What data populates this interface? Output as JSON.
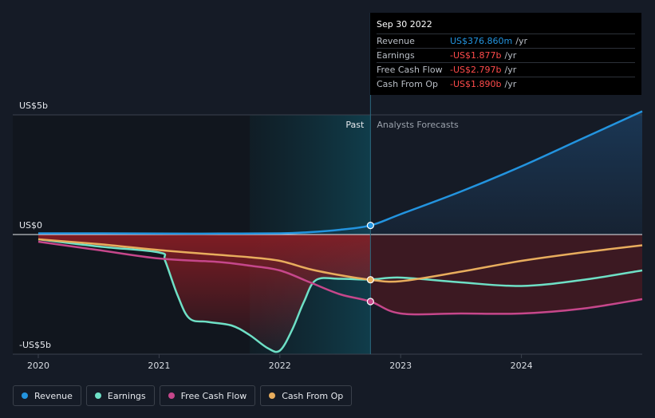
{
  "chart_data": {
    "type": "line",
    "title": "",
    "x_range": [
      2020.0,
      2025.0
    ],
    "y_range": [
      -5,
      5
    ],
    "y_tick_labels": [
      "US$5b",
      "US$0",
      "-US$5b"
    ],
    "y_tick_values": [
      5,
      0,
      -5
    ],
    "x_tick_labels": [
      "2020",
      "2021",
      "2022",
      "2023",
      "2024"
    ],
    "x_tick_values": [
      2020,
      2021,
      2022,
      2023,
      2024
    ],
    "past_label": "Past",
    "forecast_label": "Analysts Forecasts",
    "divider_x": 2022.75,
    "highlight_start_x": 2021.75,
    "series": [
      {
        "name": "Revenue",
        "color": "#2394df",
        "points": [
          [
            2020.0,
            0.05
          ],
          [
            2020.5,
            0.05
          ],
          [
            2021.0,
            0.04
          ],
          [
            2021.5,
            0.04
          ],
          [
            2022.0,
            0.05
          ],
          [
            2022.25,
            0.1
          ],
          [
            2022.5,
            0.2
          ],
          [
            2022.75,
            0.38
          ],
          [
            2023.0,
            0.85
          ],
          [
            2023.5,
            1.8
          ],
          [
            2024.0,
            2.85
          ],
          [
            2024.5,
            4.0
          ],
          [
            2025.0,
            5.15
          ]
        ]
      },
      {
        "name": "Earnings",
        "color": "#6ee0c6",
        "points": [
          [
            2020.0,
            -0.2
          ],
          [
            2020.5,
            -0.5
          ],
          [
            2021.0,
            -0.75
          ],
          [
            2021.05,
            -1.1
          ],
          [
            2021.15,
            -2.5
          ],
          [
            2021.25,
            -3.5
          ],
          [
            2021.4,
            -3.65
          ],
          [
            2021.6,
            -3.8
          ],
          [
            2021.75,
            -4.2
          ],
          [
            2021.9,
            -4.75
          ],
          [
            2022.0,
            -4.85
          ],
          [
            2022.1,
            -4.0
          ],
          [
            2022.2,
            -2.8
          ],
          [
            2022.3,
            -1.9
          ],
          [
            2022.5,
            -1.85
          ],
          [
            2022.75,
            -1.88
          ],
          [
            2023.0,
            -1.8
          ],
          [
            2023.5,
            -2.0
          ],
          [
            2024.0,
            -2.15
          ],
          [
            2024.5,
            -1.9
          ],
          [
            2025.0,
            -1.5
          ]
        ]
      },
      {
        "name": "Free Cash Flow",
        "color": "#c6478b",
        "points": [
          [
            2020.0,
            -0.3
          ],
          [
            2020.5,
            -0.65
          ],
          [
            2021.0,
            -1.0
          ],
          [
            2021.5,
            -1.15
          ],
          [
            2021.75,
            -1.3
          ],
          [
            2022.0,
            -1.5
          ],
          [
            2022.25,
            -2.0
          ],
          [
            2022.5,
            -2.5
          ],
          [
            2022.75,
            -2.8
          ],
          [
            2023.0,
            -3.3
          ],
          [
            2023.5,
            -3.3
          ],
          [
            2024.0,
            -3.3
          ],
          [
            2024.5,
            -3.1
          ],
          [
            2025.0,
            -2.7
          ]
        ]
      },
      {
        "name": "Cash From Op",
        "color": "#e8ad5d",
        "points": [
          [
            2020.0,
            -0.2
          ],
          [
            2020.5,
            -0.4
          ],
          [
            2021.0,
            -0.65
          ],
          [
            2021.5,
            -0.85
          ],
          [
            2021.75,
            -0.95
          ],
          [
            2022.0,
            -1.1
          ],
          [
            2022.25,
            -1.45
          ],
          [
            2022.5,
            -1.7
          ],
          [
            2022.75,
            -1.89
          ],
          [
            2023.0,
            -1.95
          ],
          [
            2023.5,
            -1.55
          ],
          [
            2024.0,
            -1.1
          ],
          [
            2024.5,
            -0.75
          ],
          [
            2025.0,
            -0.45
          ]
        ]
      }
    ]
  },
  "tooltip": {
    "date": "Sep 30 2022",
    "rows": [
      {
        "label": "Revenue",
        "value": "US$376.860m",
        "unit": "/yr",
        "color": "#2394df"
      },
      {
        "label": "Earnings",
        "value": "-US$1.877b",
        "unit": "/yr",
        "color": "#ff4b4b"
      },
      {
        "label": "Free Cash Flow",
        "value": "-US$2.797b",
        "unit": "/yr",
        "color": "#ff4b4b"
      },
      {
        "label": "Cash From Op",
        "value": "-US$1.890b",
        "unit": "/yr",
        "color": "#ff4b4b"
      }
    ]
  },
  "legend": [
    {
      "label": "Revenue",
      "color": "#2394df"
    },
    {
      "label": "Earnings",
      "color": "#6ee0c6"
    },
    {
      "label": "Free Cash Flow",
      "color": "#c6478b"
    },
    {
      "label": "Cash From Op",
      "color": "#e8ad5d"
    }
  ]
}
